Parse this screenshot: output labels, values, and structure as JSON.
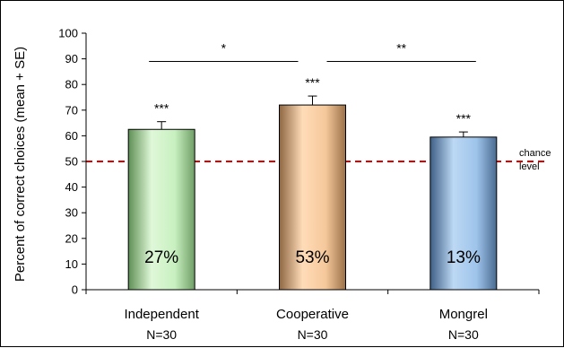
{
  "chart_data": {
    "type": "bar",
    "ylabel": "Percent of correct choices (mean + SE)",
    "ylim": [
      0,
      100
    ],
    "yticks": [
      0,
      10,
      20,
      30,
      40,
      50,
      60,
      70,
      80,
      90,
      100
    ],
    "grid": false,
    "categories": [
      "Independent",
      "Cooperative",
      "Mongrel"
    ],
    "sublabels": [
      "N=30",
      "N=30",
      "N=30"
    ],
    "values": [
      62.5,
      72,
      59.5
    ],
    "errors": [
      3,
      3.5,
      2
    ],
    "bar_colors": [
      "#c8f0c0",
      "#f5c89a",
      "#9ec4ea"
    ],
    "significance": [
      "***",
      "***",
      "***"
    ],
    "inner_labels": [
      "27%",
      "53%",
      "13%"
    ],
    "reference_line": {
      "value": 50,
      "color": "#e00000",
      "label_line1": "chance",
      "label_line2": "level"
    },
    "comparisons": [
      {
        "from": 0,
        "to": 1,
        "y": 89,
        "label": "*"
      },
      {
        "from": 1,
        "to": 2,
        "y": 89,
        "label": "**"
      }
    ]
  }
}
